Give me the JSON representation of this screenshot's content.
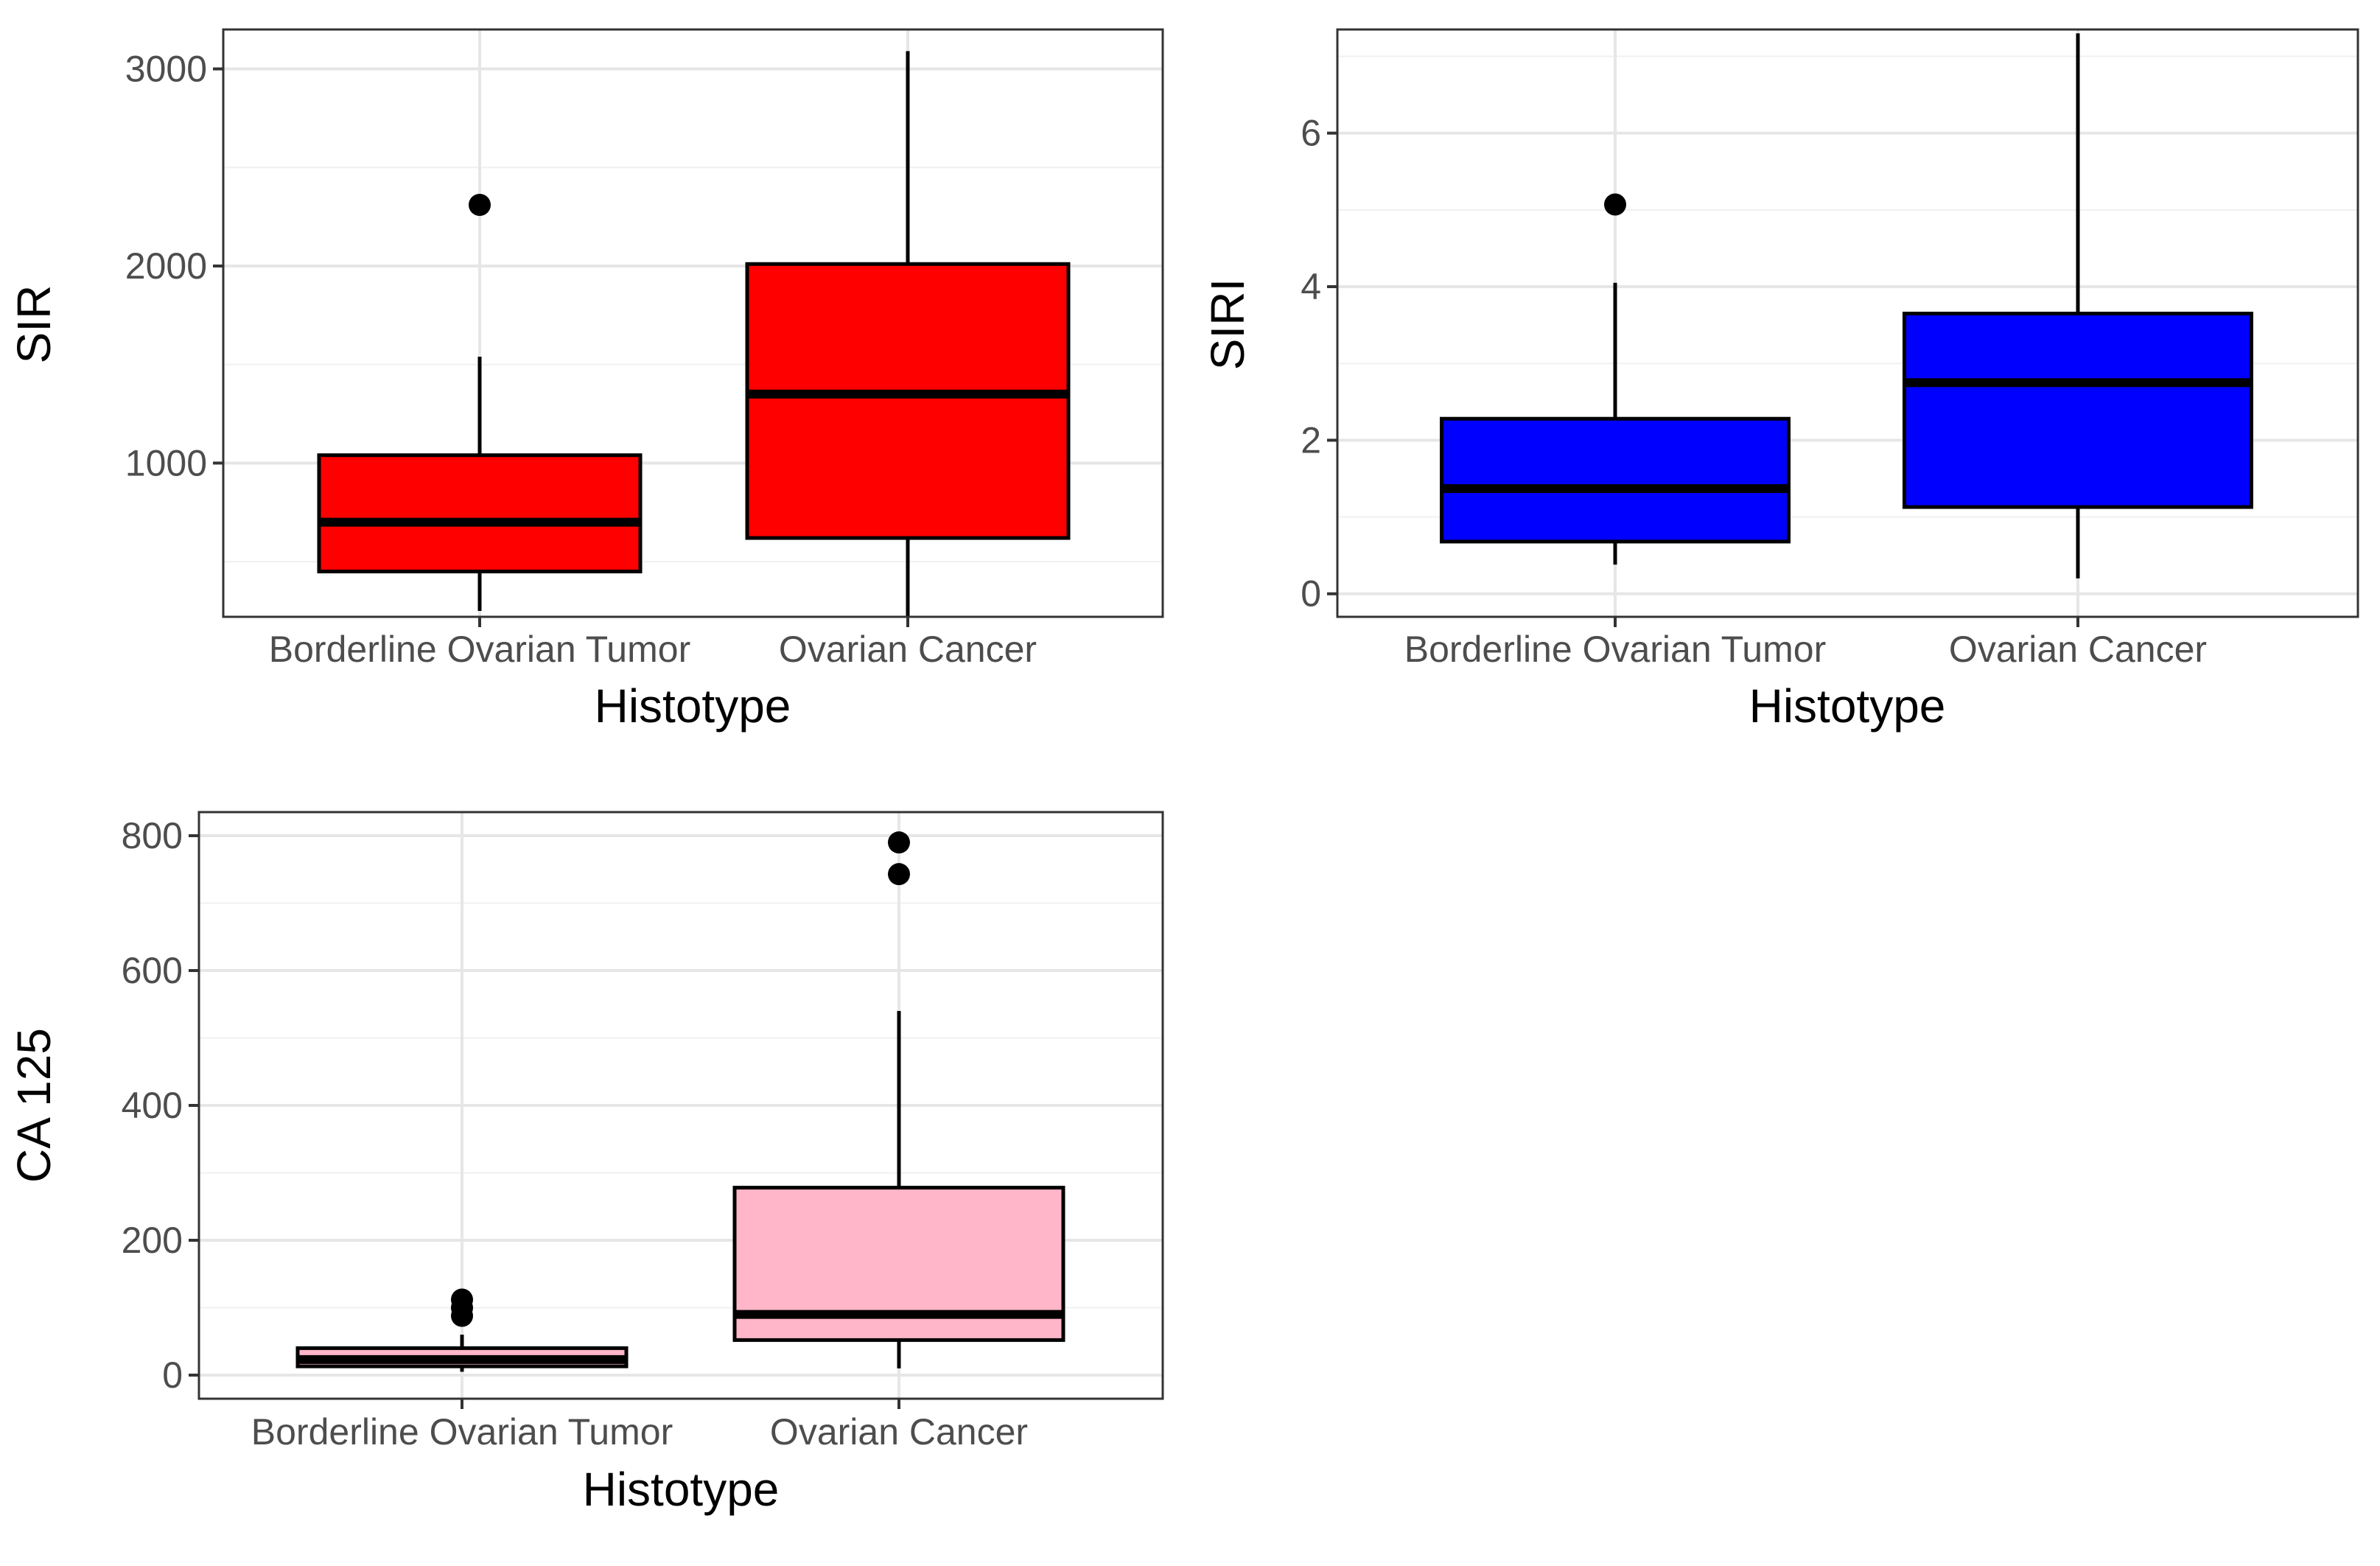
{
  "chart_data": [
    {
      "type": "box",
      "id": "sir",
      "xlabel": "Histotype",
      "ylabel": "SIR",
      "categories": [
        "Borderline Ovarian Tumor",
        "Ovarian Cancer"
      ],
      "ylim": [
        220,
        3200
      ],
      "yticks": [
        1000,
        2000,
        3000
      ],
      "yticklabels": [
        "1000",
        "2000",
        "3000"
      ],
      "fill_color": "#ff0000",
      "grid": true,
      "boxes": [
        {
          "category": "Borderline Ovarian Tumor",
          "whisker_low": 250,
          "q1": 450,
          "median": 700,
          "q3": 1040,
          "whisker_high": 1540,
          "outliers": [
            2310
          ]
        },
        {
          "category": "Ovarian Cancer",
          "whisker_low": 220,
          "q1": 620,
          "median": 1350,
          "q3": 2010,
          "whisker_high": 3090,
          "outliers": []
        }
      ]
    },
    {
      "type": "box",
      "id": "siri",
      "xlabel": "Histotype",
      "ylabel": "SIRI",
      "categories": [
        "Borderline Ovarian Tumor",
        "Ovarian Cancer"
      ],
      "ylim": [
        -0.3,
        7.35
      ],
      "yticks": [
        0,
        2,
        4,
        6
      ],
      "yticklabels": [
        "0",
        "2",
        "4",
        "6"
      ],
      "fill_color": "#0000ff",
      "grid": true,
      "boxes": [
        {
          "category": "Borderline Ovarian Tumor",
          "whisker_low": 0.38,
          "q1": 0.68,
          "median": 1.37,
          "q3": 2.28,
          "whisker_high": 4.05,
          "outliers": [
            5.07
          ]
        },
        {
          "category": "Ovarian Cancer",
          "whisker_low": 0.2,
          "q1": 1.13,
          "median": 2.75,
          "q3": 3.65,
          "whisker_high": 7.3,
          "outliers": []
        }
      ]
    },
    {
      "type": "box",
      "id": "ca125",
      "xlabel": "Histotype",
      "ylabel": "CA 125",
      "categories": [
        "Borderline Ovarian Tumor",
        "Ovarian Cancer"
      ],
      "ylim": [
        -35,
        835
      ],
      "yticks": [
        0,
        200,
        400,
        600,
        800
      ],
      "yticklabels": [
        "0",
        "200",
        "400",
        "600",
        "800"
      ],
      "fill_color": "#ffb6c8",
      "grid": true,
      "boxes": [
        {
          "category": "Borderline Ovarian Tumor",
          "whisker_low": 5,
          "q1": 13,
          "median": 23,
          "q3": 40,
          "whisker_high": 60,
          "outliers": [
            88,
            100,
            112
          ]
        },
        {
          "category": "Ovarian Cancer",
          "whisker_low": 10,
          "q1": 52,
          "median": 90,
          "q3": 278,
          "whisker_high": 540,
          "outliers": [
            743,
            790
          ]
        }
      ]
    }
  ]
}
